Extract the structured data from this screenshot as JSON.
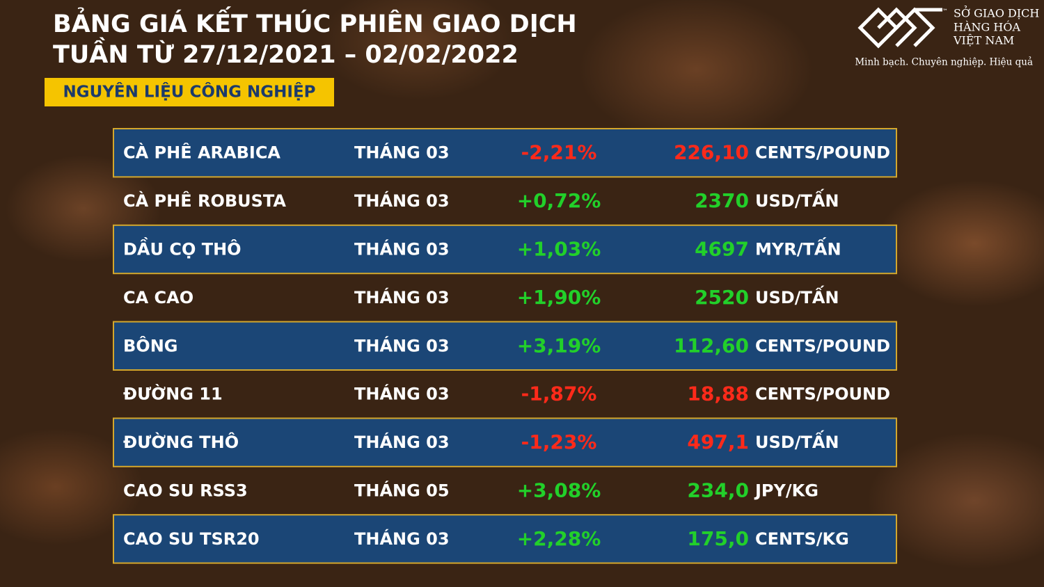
{
  "header": {
    "title": [
      "BẢNG GIÁ KẾT THÚC PHIÊN GIAO DỊCH",
      "TUẦN TỪ 27/12/2021 – 02/02/2022"
    ],
    "badge": "NGUYÊN LIỆU CÔNG NGHIỆP"
  },
  "logo": {
    "tm": "™",
    "name": [
      "SỞ GIAO DỊCH",
      "HÀNG HÓA",
      "VIỆT NAM"
    ],
    "slogan": "Minh bạch. Chuyên nghiệp. Hiệu quả"
  },
  "table": {
    "rows": [
      [
        "CÀ PHÊ ARABICA",
        "THÁNG 03",
        "-2,21%",
        "226,10",
        "CENTS/POUND"
      ],
      [
        "CÀ PHÊ ROBUSTA",
        "THÁNG 03",
        "+0,72%",
        "2370",
        "USD/TẤN"
      ],
      [
        "DẦU CỌ THÔ",
        "THÁNG 03",
        "+1,03%",
        "4697",
        "MYR/TẤN"
      ],
      [
        "CA CAO",
        "THÁNG 03",
        "+1,90%",
        "2520",
        "USD/TẤN"
      ],
      [
        "BÔNG",
        "THÁNG 03",
        "+3,19%",
        "112,60",
        "CENTS/POUND"
      ],
      [
        "ĐƯỜNG 11",
        "THÁNG 03",
        "-1,87%",
        "18,88",
        "CENTS/POUND"
      ],
      [
        "ĐƯỜNG THÔ",
        "THÁNG 03",
        "-1,23%",
        "497,1",
        "USD/TẤN"
      ],
      [
        "CAO SU RSS3",
        "THÁNG 05",
        "+3,08%",
        "234,0",
        "JPY/KG"
      ],
      [
        "CAO SU TSR20",
        "THÁNG 03",
        "+2,28%",
        "175,0",
        "CENTS/KG"
      ]
    ]
  }
}
